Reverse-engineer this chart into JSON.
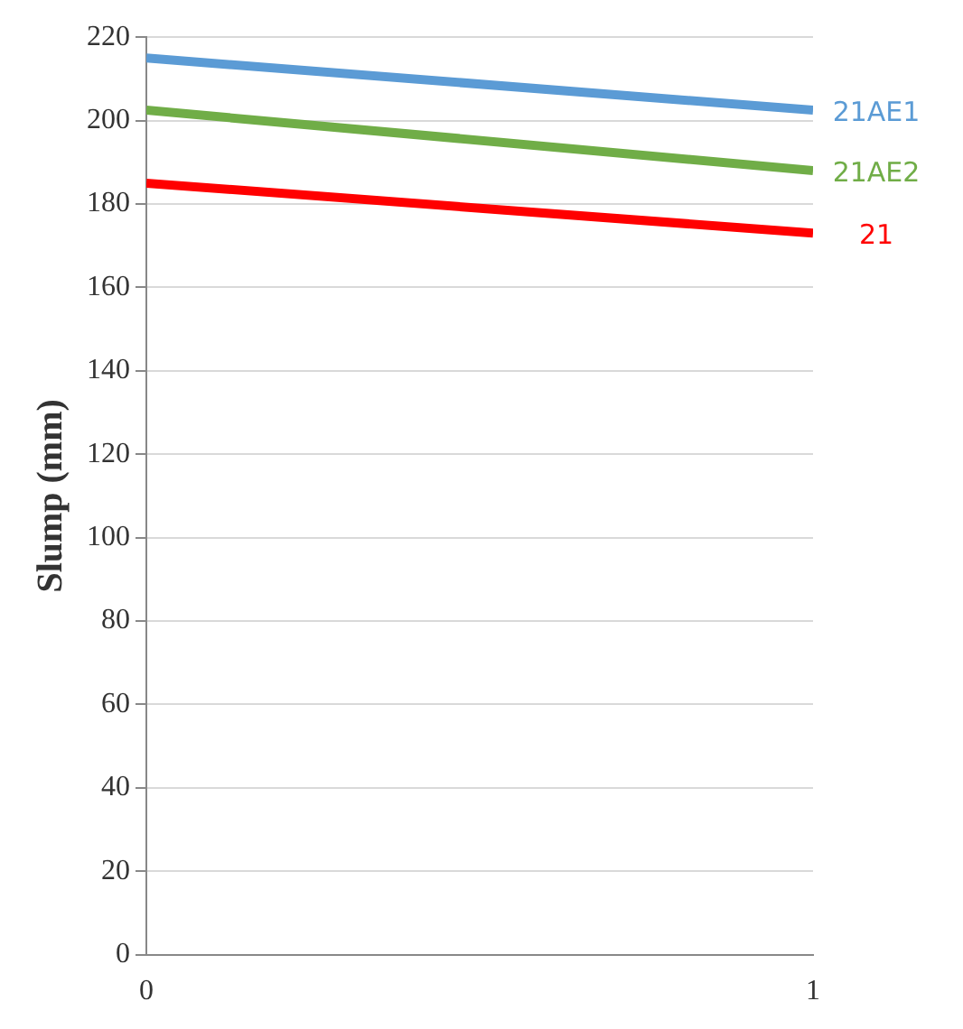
{
  "chart_data": {
    "type": "line",
    "ylabel": "Slump (mm)",
    "x": [
      0,
      1
    ],
    "xlim": [
      0,
      1
    ],
    "xticks": [
      0,
      1
    ],
    "ylim": [
      0,
      220
    ],
    "yticks": [
      0,
      20,
      40,
      60,
      80,
      100,
      120,
      140,
      160,
      180,
      200,
      220
    ],
    "grid": "y",
    "legend": false,
    "marker": "none",
    "line_style": "solid",
    "series": [
      {
        "name": "21AE1",
        "color": "#5b9bd5",
        "values": [
          215,
          202.5
        ]
      },
      {
        "name": "21AE2",
        "color": "#70ad47",
        "values": [
          202.5,
          188
        ]
      },
      {
        "name": "21",
        "color": "#ff0000",
        "values": [
          185,
          173
        ]
      }
    ]
  }
}
